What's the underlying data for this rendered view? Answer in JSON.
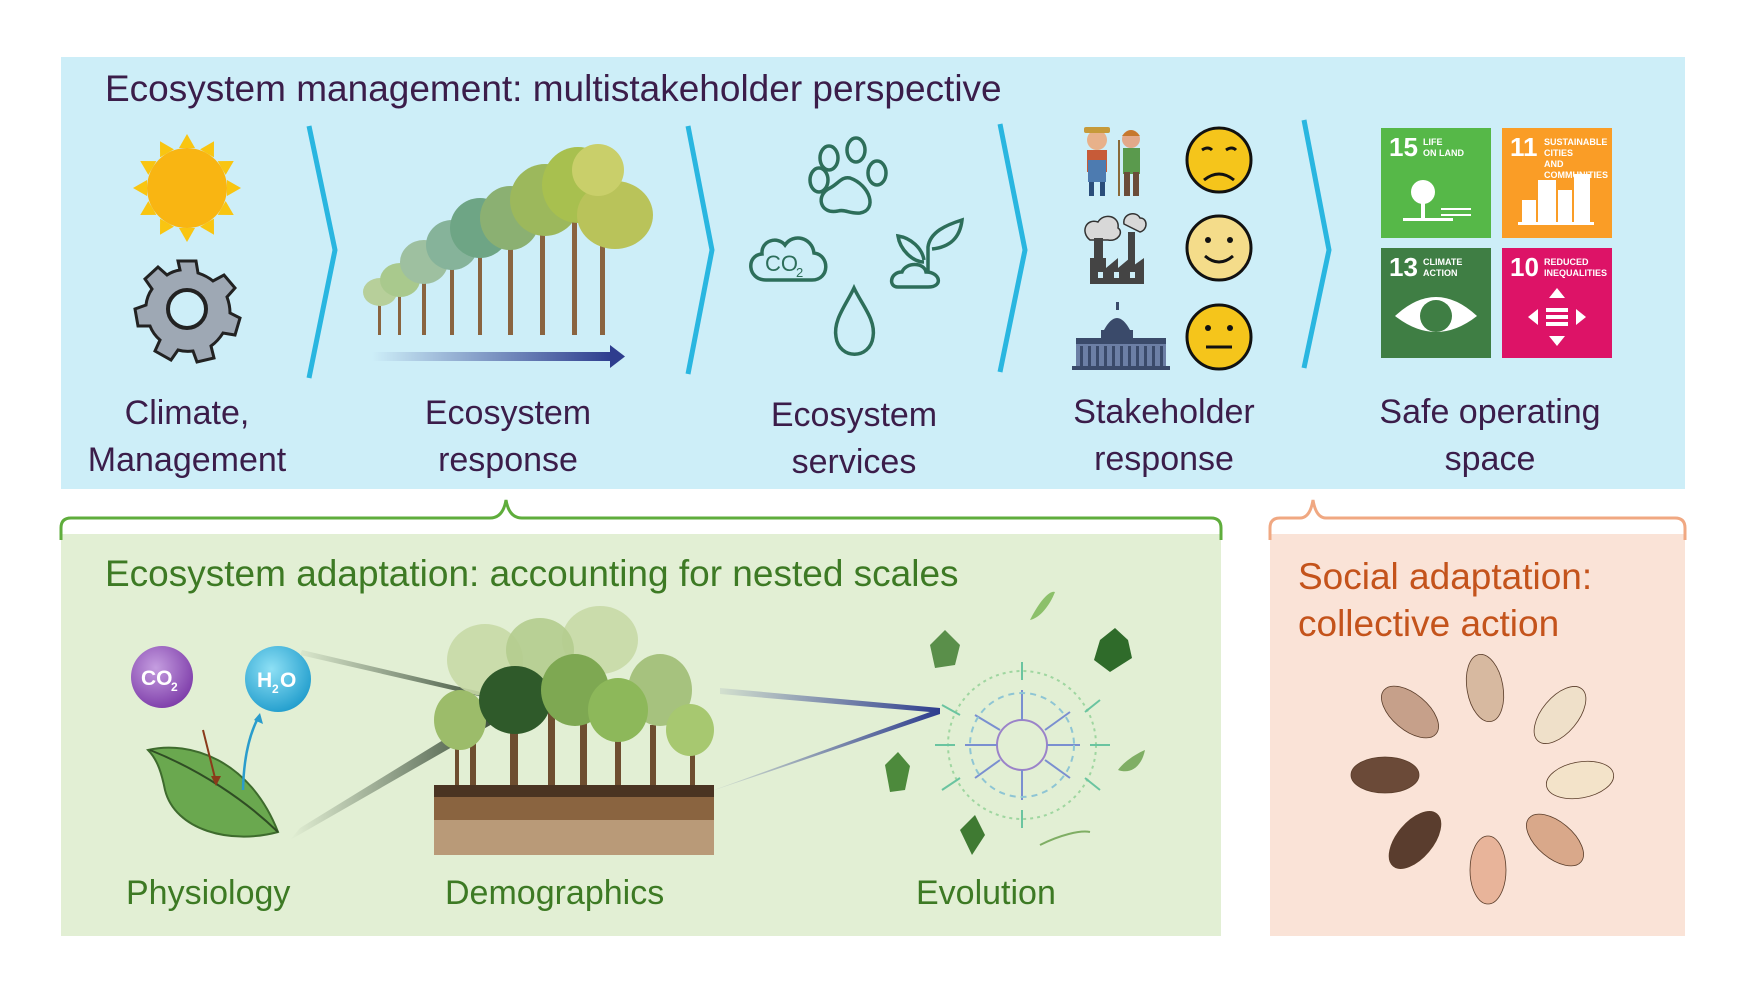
{
  "top": {
    "title": "Ecosystem management: multistakeholder perspective",
    "stages": [
      {
        "line1": "Climate,",
        "line2": "Management"
      },
      {
        "line1": "Ecosystem",
        "line2": "response"
      },
      {
        "line1": "Ecosystem",
        "line2": "services"
      },
      {
        "line1": "Stakeholder",
        "line2": "response"
      },
      {
        "line1": "Safe operating",
        "line2": "space"
      }
    ],
    "co2_label": "CO",
    "co2_sub": "2",
    "sdg": [
      {
        "number": "15",
        "caption": "LIFE\nON LAND",
        "color": "#56b848"
      },
      {
        "number": "11",
        "caption": "SUSTAINABLE CITIES\nAND COMMUNITIES",
        "color": "#fa9d26"
      },
      {
        "number": "13",
        "caption": "CLIMATE\nACTION",
        "color": "#3f7e44"
      },
      {
        "number": "10",
        "caption": "REDUCED\nINEQUALITIES",
        "color": "#dd1367"
      }
    ]
  },
  "ecosystem_adaptation": {
    "title": "Ecosystem adaptation: accounting for nested scales",
    "labels": {
      "physiology": "Physiology",
      "demographics": "Demographics",
      "evolution": "Evolution"
    },
    "co2_label": "CO",
    "co2_sub": "2",
    "h2o_label": "H",
    "h2o_sub": "2",
    "h2o_o": "O"
  },
  "social_adaptation": {
    "title_line1": "Social adaptation:",
    "title_line2": "collective action"
  },
  "colors": {
    "top_panel": "#cdeef8",
    "green_panel": "#e2efd4",
    "orange_panel": "#fae3d7",
    "chevron": "#29b6e0",
    "title_purple": "#3b1d4a",
    "green_text": "#3d7a24",
    "orange_text": "#c4531b"
  }
}
